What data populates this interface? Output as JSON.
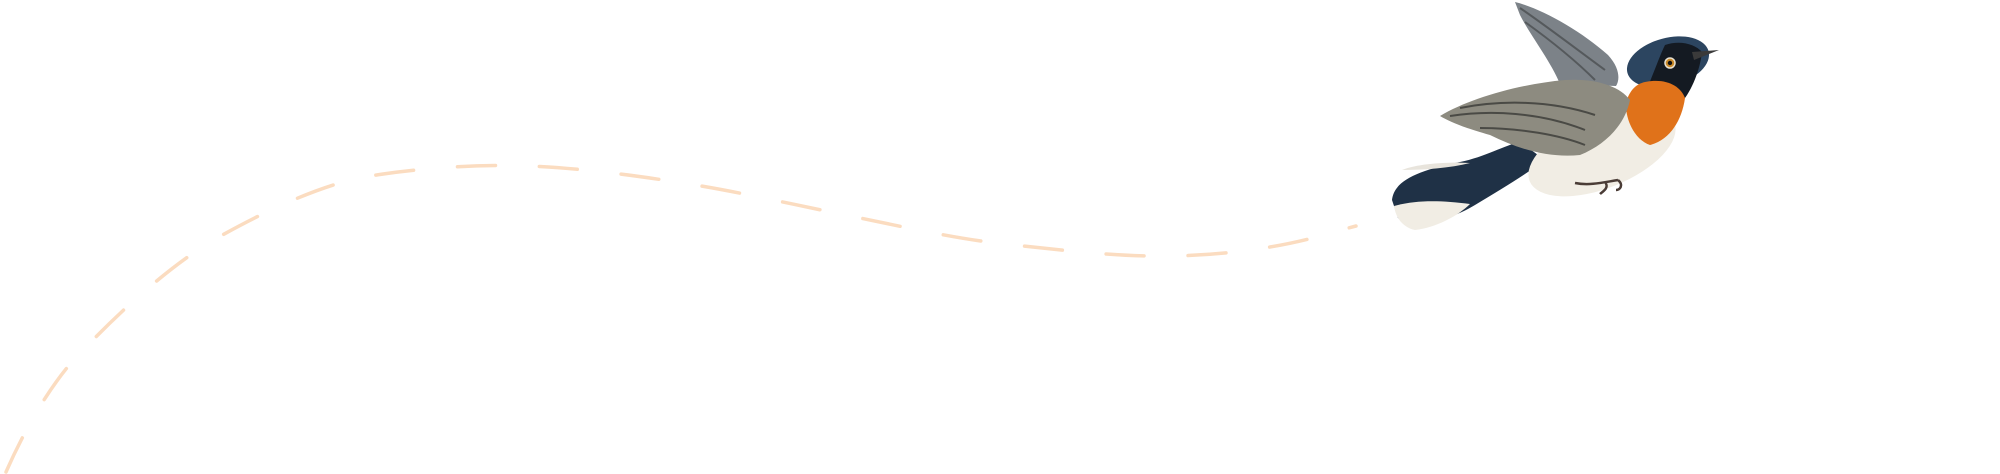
{
  "colors": {
    "background": "#ffffff",
    "flight_path": "#fbdcc0",
    "bird_orange": "#e0721a",
    "bird_blue": "#1f3146",
    "bird_wing": "#8d8b80",
    "bird_belly": "#f1ede4"
  },
  "illustration": {
    "subject": "bird-icon",
    "path_style": "dashed"
  }
}
